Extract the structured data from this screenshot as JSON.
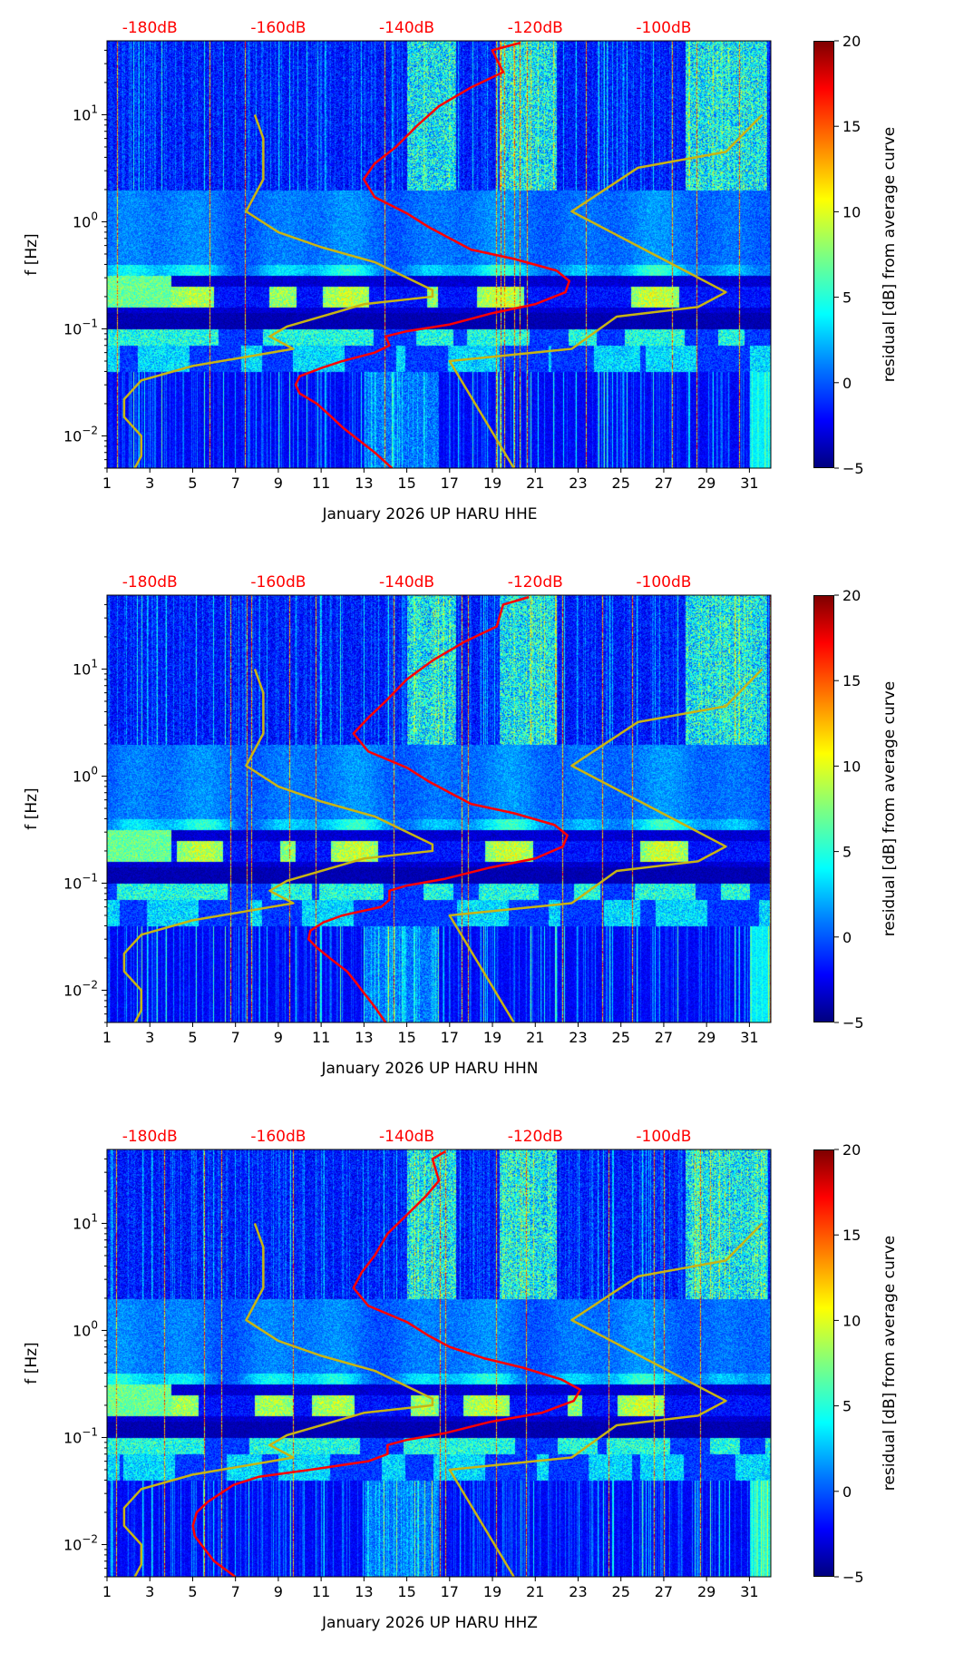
{
  "chart_data": {
    "type": "heatmap",
    "shared": {
      "x_ticks": [
        "1",
        "3",
        "5",
        "7",
        "9",
        "11",
        "13",
        "15",
        "17",
        "19",
        "21",
        "23",
        "25",
        "27",
        "29",
        "31"
      ],
      "x_range": [
        1,
        32
      ],
      "top_ticks": [
        "-180dB",
        "-160dB",
        "-140dB",
        "-120dB",
        "-100dB"
      ],
      "top_tick_days": [
        3,
        9,
        15,
        21,
        27
      ],
      "ylabel": "f [Hz]",
      "y_ticks": [
        {
          "base": "10",
          "exp": "−2",
          "value": 0.01
        },
        {
          "base": "10",
          "exp": "−1",
          "value": 0.1
        },
        {
          "base": "10",
          "exp": "0",
          "value": 1
        },
        {
          "base": "10",
          "exp": "1",
          "value": 10
        }
      ],
      "y_range_hz": [
        0.005,
        49
      ],
      "y_scale": "log",
      "colorbar": {
        "label": "residual [dB] from average curve",
        "ticks": [
          "−5",
          "0",
          "5",
          "10",
          "15",
          "20"
        ],
        "range": [
          -5,
          20
        ],
        "colormap": "jet"
      },
      "low_noise_model": {
        "color": "#c8b414",
        "points_day_hz": [
          [
            7.9,
            10
          ],
          [
            8.3,
            6
          ],
          [
            8.3,
            2.5
          ],
          [
            7.5,
            1.25
          ],
          [
            9,
            0.8
          ],
          [
            11,
            0.58
          ],
          [
            13.5,
            0.42
          ],
          [
            16.2,
            0.23
          ],
          [
            16.2,
            0.2
          ],
          [
            13,
            0.17
          ],
          [
            9.4,
            0.105
          ],
          [
            8.6,
            0.085
          ],
          [
            9.7,
            0.065
          ],
          [
            5,
            0.045
          ],
          [
            2.6,
            0.033
          ],
          [
            1.8,
            0.022
          ],
          [
            1.8,
            0.015
          ],
          [
            2.6,
            0.01
          ],
          [
            2.6,
            0.0065
          ],
          [
            2.3,
            0.005
          ]
        ]
      },
      "high_noise_model": {
        "color": "#c8b414",
        "points_day_hz": [
          [
            31.6,
            10
          ],
          [
            29.9,
            4.5
          ],
          [
            25.8,
            3.2
          ],
          [
            22.7,
            1.25
          ],
          [
            29.9,
            0.22
          ],
          [
            28.6,
            0.16
          ],
          [
            24.8,
            0.13
          ],
          [
            22.7,
            0.065
          ],
          [
            17,
            0.05
          ],
          [
            20,
            0.005
          ]
        ]
      }
    },
    "panels": [
      {
        "xlabel": "January 2026 UP HARU  HHE",
        "seed": 11,
        "median_curve_db_hz": [
          [
            -122.3,
            47
          ],
          [
            -126.7,
            40
          ],
          [
            -125,
            25
          ],
          [
            -130,
            18
          ],
          [
            -135,
            12
          ],
          [
            -138.3,
            8
          ],
          [
            -141.7,
            5
          ],
          [
            -145,
            3.5
          ],
          [
            -146.7,
            2.5
          ],
          [
            -145,
            1.7
          ],
          [
            -140,
            1.2
          ],
          [
            -136.7,
            0.9
          ],
          [
            -133.3,
            0.7
          ],
          [
            -130,
            0.55
          ],
          [
            -123.3,
            0.45
          ],
          [
            -116.7,
            0.35
          ],
          [
            -114.7,
            0.28
          ],
          [
            -115.3,
            0.22
          ],
          [
            -120,
            0.17
          ],
          [
            -126.7,
            0.14
          ],
          [
            -133.3,
            0.11
          ],
          [
            -140,
            0.095
          ],
          [
            -143.3,
            0.085
          ],
          [
            -142.7,
            0.07
          ],
          [
            -145,
            0.06
          ],
          [
            -150,
            0.05
          ],
          [
            -153.3,
            0.043
          ],
          [
            -156.7,
            0.036
          ],
          [
            -157.3,
            0.03
          ],
          [
            -156.7,
            0.025
          ],
          [
            -154,
            0.02
          ],
          [
            -151.7,
            0.015
          ],
          [
            -150,
            0.012
          ],
          [
            -148.3,
            0.01
          ],
          [
            -145,
            0.007
          ],
          [
            -142.3,
            0.005
          ]
        ]
      },
      {
        "xlabel": "January 2026 UP HARU  HHN",
        "seed": 23,
        "median_curve_db_hz": [
          [
            -121,
            47
          ],
          [
            -125,
            40
          ],
          [
            -126,
            25
          ],
          [
            -131,
            18
          ],
          [
            -136,
            12
          ],
          [
            -140,
            8
          ],
          [
            -143.3,
            5
          ],
          [
            -146,
            3.5
          ],
          [
            -148.3,
            2.5
          ],
          [
            -146,
            1.7
          ],
          [
            -140,
            1.2
          ],
          [
            -136.7,
            0.9
          ],
          [
            -133.3,
            0.7
          ],
          [
            -130,
            0.55
          ],
          [
            -123.3,
            0.45
          ],
          [
            -117,
            0.35
          ],
          [
            -115,
            0.28
          ],
          [
            -115.7,
            0.22
          ],
          [
            -120,
            0.17
          ],
          [
            -127,
            0.14
          ],
          [
            -134,
            0.11
          ],
          [
            -140,
            0.095
          ],
          [
            -142.7,
            0.085
          ],
          [
            -142.7,
            0.07
          ],
          [
            -144,
            0.06
          ],
          [
            -150,
            0.05
          ],
          [
            -153,
            0.043
          ],
          [
            -155,
            0.036
          ],
          [
            -155.3,
            0.03
          ],
          [
            -154,
            0.025
          ],
          [
            -152,
            0.02
          ],
          [
            -149.3,
            0.015
          ],
          [
            -148,
            0.012
          ],
          [
            -147,
            0.01
          ],
          [
            -145,
            0.007
          ],
          [
            -143.3,
            0.005
          ]
        ]
      },
      {
        "xlabel": "January 2026 UP HARU  HHZ",
        "seed": 37,
        "median_curve_db_hz": [
          [
            -134,
            47
          ],
          [
            -136,
            40
          ],
          [
            -135,
            25
          ],
          [
            -137,
            18
          ],
          [
            -140,
            12
          ],
          [
            -143,
            8
          ],
          [
            -145,
            5
          ],
          [
            -147,
            3.5
          ],
          [
            -148.3,
            2.5
          ],
          [
            -146,
            1.7
          ],
          [
            -140,
            1.2
          ],
          [
            -136.7,
            0.9
          ],
          [
            -133.3,
            0.7
          ],
          [
            -128,
            0.55
          ],
          [
            -122,
            0.45
          ],
          [
            -116,
            0.35
          ],
          [
            -113,
            0.28
          ],
          [
            -114,
            0.22
          ],
          [
            -119,
            0.17
          ],
          [
            -127,
            0.14
          ],
          [
            -134,
            0.11
          ],
          [
            -140,
            0.095
          ],
          [
            -143,
            0.085
          ],
          [
            -143,
            0.07
          ],
          [
            -146,
            0.06
          ],
          [
            -155,
            0.05
          ],
          [
            -163,
            0.043
          ],
          [
            -167,
            0.036
          ],
          [
            -169,
            0.03
          ],
          [
            -171,
            0.025
          ],
          [
            -172.7,
            0.02
          ],
          [
            -173.3,
            0.015
          ],
          [
            -173,
            0.012
          ],
          [
            -172,
            0.01
          ],
          [
            -170,
            0.007
          ],
          [
            -166.7,
            0.005
          ]
        ]
      }
    ]
  }
}
